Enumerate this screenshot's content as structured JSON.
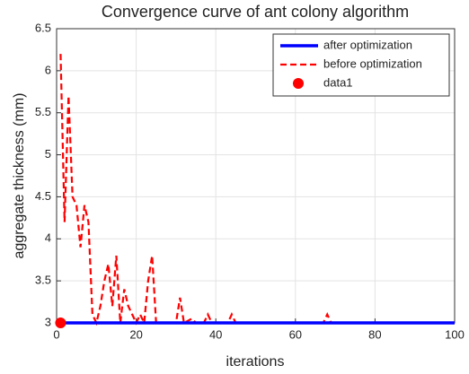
{
  "chart_data": {
    "type": "line",
    "title": "Convergence curve of ant colony algorithm",
    "x_label": "iterations",
    "y_label": "aggregate thickness (mm)",
    "xlim": [
      0,
      100
    ],
    "xticks": [
      0,
      20,
      40,
      60,
      80,
      100
    ],
    "ylim": [
      3,
      6.5
    ],
    "yticks": [
      3,
      3.5,
      4,
      4.5,
      5,
      5.5,
      6,
      6.5
    ],
    "grid": true,
    "legend": "top-right",
    "series": [
      {
        "name": "after optimization",
        "color": "#0000ff",
        "style": "solid",
        "x": [
          1,
          100
        ],
        "values": [
          3,
          3
        ]
      },
      {
        "name": "before optimization",
        "color": "#ff0000",
        "style": "dashed",
        "x": [
          1,
          2,
          3,
          4,
          5,
          6,
          7,
          8,
          9,
          10,
          11,
          12,
          13,
          14,
          15,
          16,
          17,
          18,
          19,
          20,
          21,
          22,
          23,
          24,
          25,
          26,
          30,
          31,
          32,
          34,
          35,
          37,
          38,
          39,
          43,
          44,
          45,
          67,
          68,
          69,
          100
        ],
        "values": [
          6.2,
          4.2,
          5.7,
          4.5,
          4.4,
          3.9,
          4.4,
          4.2,
          3.1,
          3.0,
          3.2,
          3.5,
          3.7,
          3.2,
          3.8,
          3.0,
          3.4,
          3.2,
          3.1,
          3.0,
          3.1,
          3.0,
          3.5,
          3.8,
          3.0,
          3.0,
          3.0,
          3.3,
          3.0,
          3.05,
          3.0,
          3.0,
          3.1,
          3.0,
          3.0,
          3.1,
          3.0,
          3.0,
          3.1,
          3.0,
          3.0
        ]
      },
      {
        "name": "data1",
        "color": "#ff0000",
        "style": "marker",
        "x": [
          1
        ],
        "values": [
          3
        ]
      }
    ]
  }
}
